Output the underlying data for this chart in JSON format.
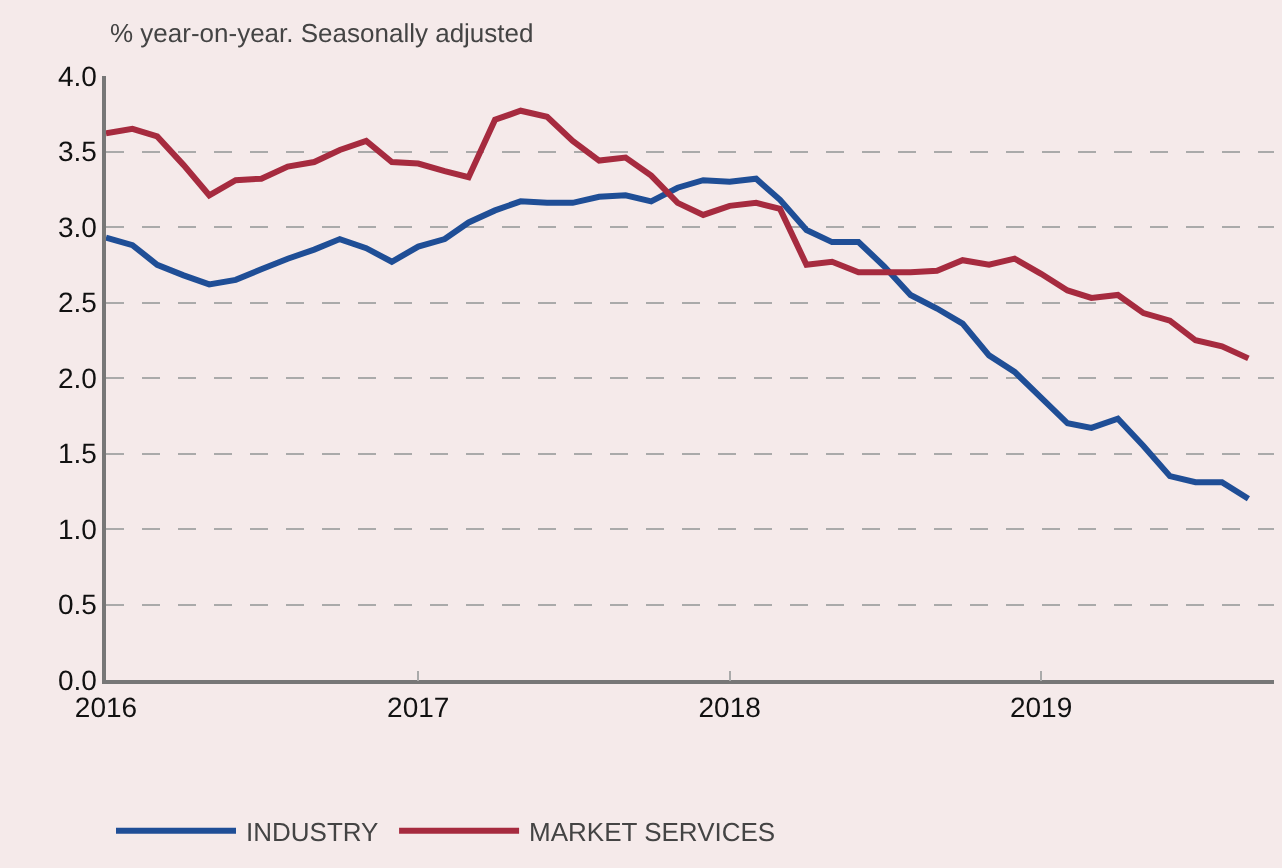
{
  "chart_data": {
    "type": "line",
    "ylabel": "% year-on-year. Seasonally adjusted",
    "x": [
      "2016-01",
      "2016-02",
      "2016-03",
      "2016-04",
      "2016-05",
      "2016-06",
      "2016-07",
      "2016-08",
      "2016-09",
      "2016-10",
      "2016-11",
      "2016-12",
      "2017-01",
      "2017-02",
      "2017-03",
      "2017-04",
      "2017-05",
      "2017-06",
      "2017-07",
      "2017-08",
      "2017-09",
      "2017-10",
      "2017-11",
      "2017-12",
      "2018-01",
      "2018-02",
      "2018-03",
      "2018-04",
      "2018-05",
      "2018-06",
      "2018-07",
      "2018-08",
      "2018-09",
      "2018-10",
      "2018-11",
      "2018-12",
      "2019-01",
      "2019-02",
      "2019-03",
      "2019-04",
      "2019-05",
      "2019-06",
      "2019-07",
      "2019-08",
      "2019-09"
    ],
    "series": [
      {
        "name": "INDUSTRY",
        "color": "#1f4e96",
        "values": [
          2.93,
          2.88,
          2.75,
          2.68,
          2.62,
          2.65,
          2.72,
          2.79,
          2.85,
          2.92,
          2.86,
          2.77,
          2.87,
          2.92,
          3.03,
          3.11,
          3.17,
          3.16,
          3.16,
          3.2,
          3.21,
          3.17,
          3.26,
          3.31,
          3.3,
          3.32,
          3.18,
          2.98,
          2.9,
          2.9,
          2.74,
          2.55,
          2.46,
          2.36,
          2.15,
          2.04,
          1.87,
          1.7,
          1.67,
          1.73,
          1.55,
          1.35,
          1.31,
          1.31,
          1.2
        ]
      },
      {
        "name": "MARKET SERVICES",
        "color": "#a62b3f",
        "values": [
          3.62,
          3.65,
          3.6,
          3.41,
          3.21,
          3.31,
          3.32,
          3.4,
          3.43,
          3.51,
          3.57,
          3.43,
          3.42,
          3.37,
          3.33,
          3.71,
          3.77,
          3.73,
          3.57,
          3.44,
          3.46,
          3.34,
          3.16,
          3.08,
          3.14,
          3.16,
          3.12,
          2.75,
          2.77,
          2.7,
          2.7,
          2.7,
          2.71,
          2.78,
          2.75,
          2.79,
          2.69,
          2.58,
          2.53,
          2.55,
          2.43,
          2.38,
          2.25,
          2.21,
          2.13
        ]
      }
    ],
    "xlim": [
      "2016-01",
      "2019-10"
    ],
    "xticks": [
      "2016",
      "2017",
      "2018",
      "2019"
    ],
    "ylim": [
      0,
      4
    ],
    "yticks": [
      {
        "value": 0,
        "label": "0.0"
      },
      {
        "value": 0.5,
        "label": "0.5"
      },
      {
        "value": 1,
        "label": "1.0"
      },
      {
        "value": 1.5,
        "label": "1.5"
      },
      {
        "value": 2,
        "label": "2.0"
      },
      {
        "value": 2.5,
        "label": "2.5"
      },
      {
        "value": 3,
        "label": "3.0"
      },
      {
        "value": 3.5,
        "label": "3.5"
      },
      {
        "value": 4,
        "label": "4.0"
      }
    ],
    "grid": "y",
    "legend": "bottom left",
    "marker": "none",
    "line_style": "solid"
  }
}
